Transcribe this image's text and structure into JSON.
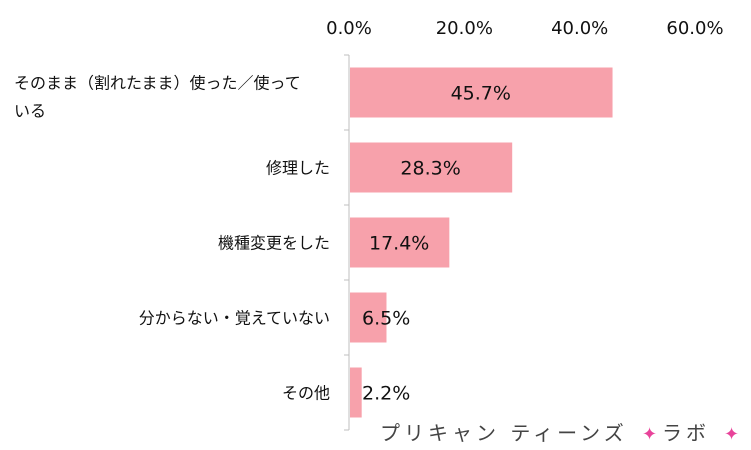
{
  "chart_data": {
    "type": "bar",
    "orientation": "horizontal",
    "categories": [
      "そのまま（割れたまま）使った／使っている",
      "修理した",
      "機種変更をした",
      "分からない・覚えていない",
      "その他"
    ],
    "values": [
      45.7,
      28.3,
      17.4,
      6.5,
      2.2
    ],
    "data_labels": [
      "45.7%",
      "28.3%",
      "17.4%",
      "6.5%",
      "2.2%"
    ],
    "x_ticks": [
      "0.0%",
      "20.0%",
      "40.0%",
      "60.0%"
    ],
    "xlim": [
      0,
      60
    ],
    "axis_position": "top",
    "grid": false,
    "legend": "none",
    "bar_color": "#f7a1ab"
  },
  "watermark": {
    "text_a": "プリキャン ティーンズ",
    "text_b": "ラボ",
    "star_color": "#e8439a"
  }
}
